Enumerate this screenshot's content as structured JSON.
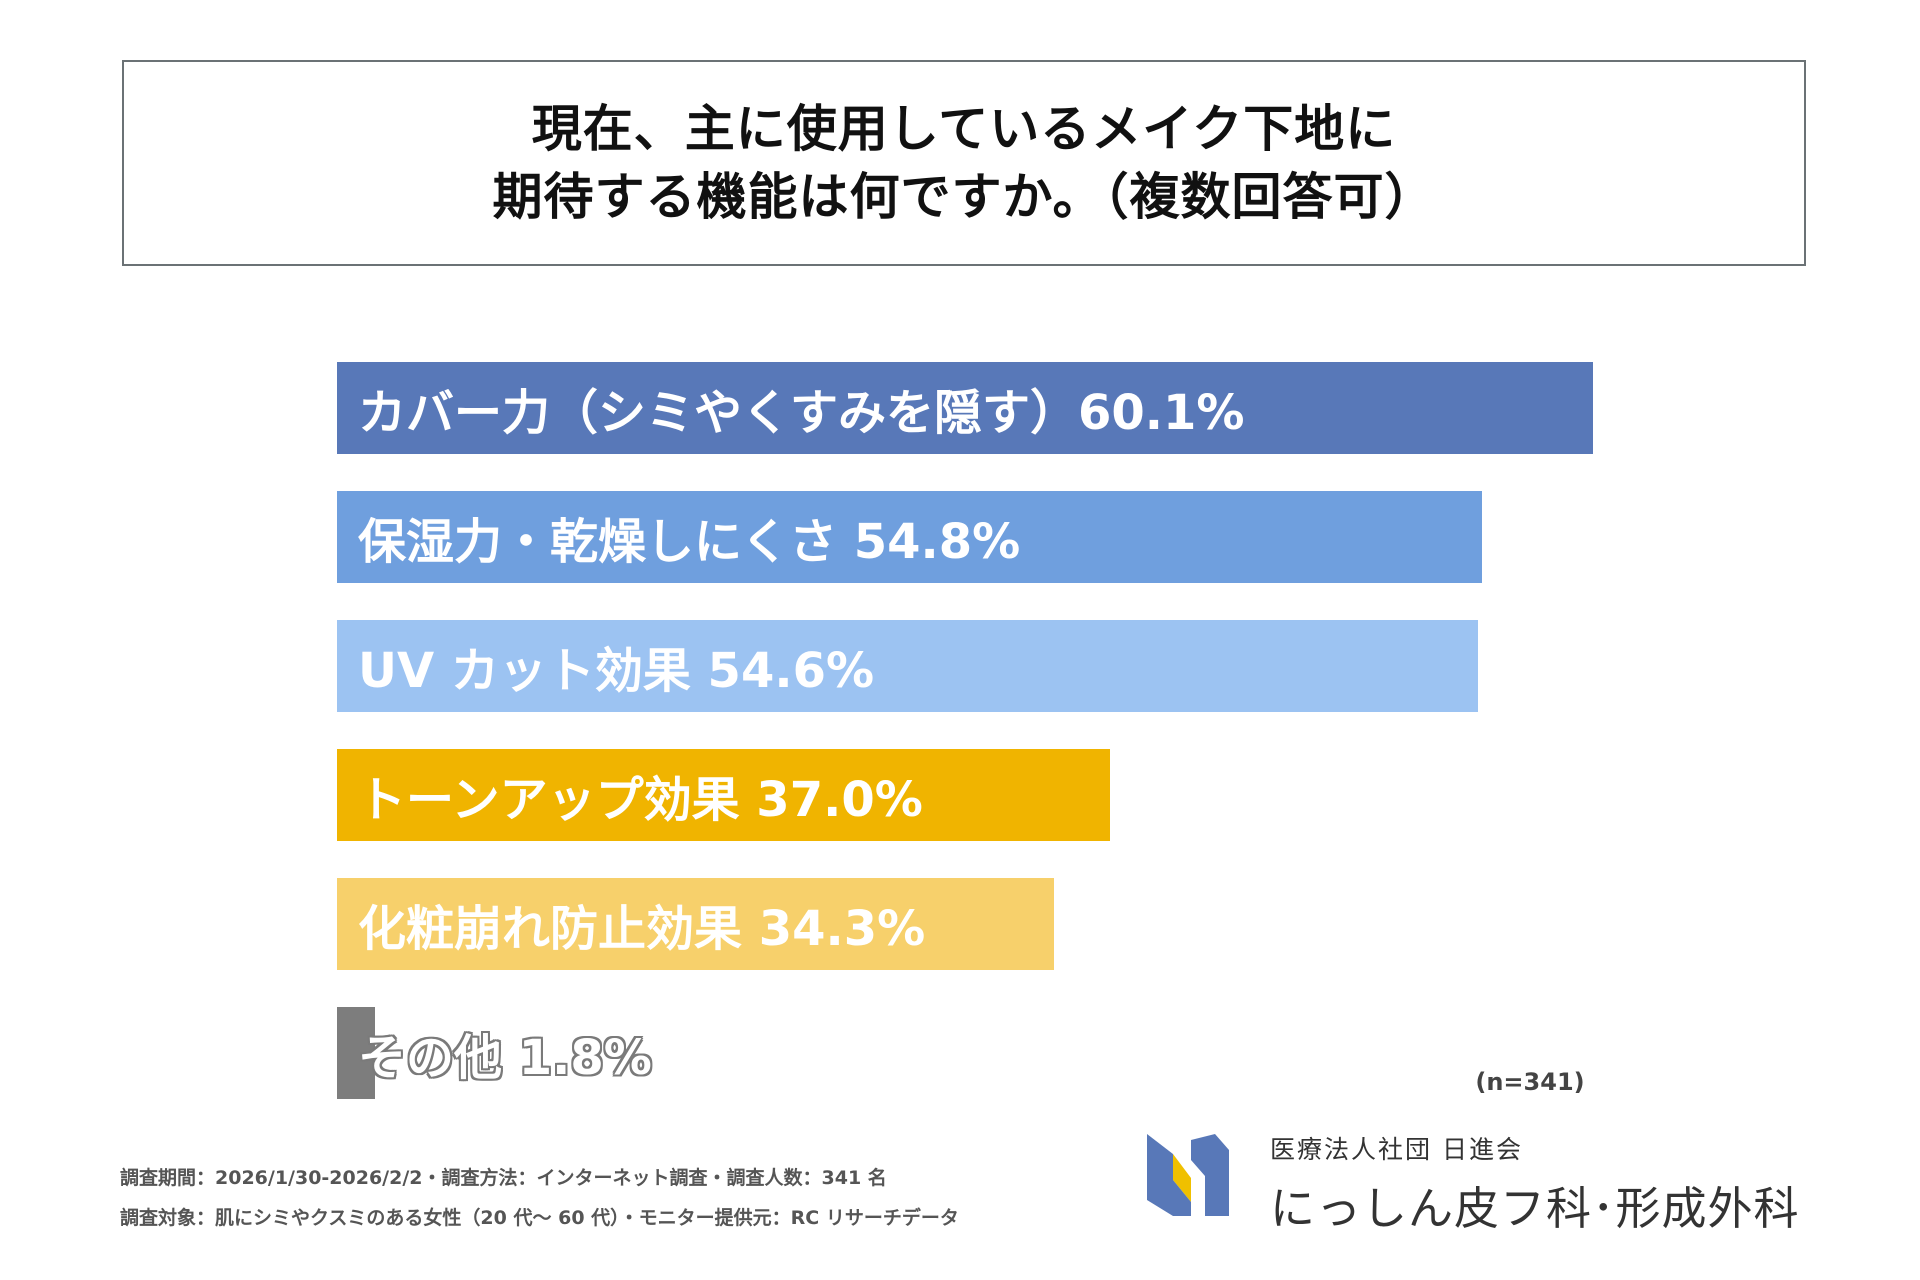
{
  "title": {
    "line1": "現在、主に使用しているメイク下地に",
    "line2": "期待する機能は何ですか。（複数回答可）"
  },
  "chart_data": {
    "type": "bar",
    "orientation": "horizontal",
    "title": "現在、主に使用しているメイク下地に期待する機能は何ですか。（複数回答可）",
    "categories": [
      "カバー力（シミやくすみを隠す）",
      "保湿力・乾燥しにくさ",
      "UV カット効果",
      "トーンアップ効果",
      "化粧崩れ防止効果",
      "その他"
    ],
    "values": [
      60.1,
      54.8,
      54.6,
      37.0,
      34.3,
      1.8
    ],
    "labels": [
      "カバー力（シミやくすみを隠す）60.1%",
      "保湿力・乾燥しにくさ  54.8%",
      "UV カット効果  54.6%",
      "トーンアップ効果  37.0%",
      "化粧崩れ防止効果  34.3%",
      "その他  1.8%"
    ],
    "colors": [
      "#5878b8",
      "#6f9fde",
      "#9cc3f2",
      "#f0b400",
      "#f7d06b",
      "#7d7d7d"
    ],
    "unit": "%",
    "xlim": [
      0,
      60.1
    ]
  },
  "sample_note": "(n=341)",
  "footnotes": {
    "line1": "調査期間：2026/1/30-2026/2/2・調査方法：インターネット調査・調査人数：341 名",
    "line2": "調査対象：肌にシミやクスミのある女性（20 代～ 60 代）・モニター提供元：RC リサーチデータ"
  },
  "organization": {
    "corporation": "医療法人社団 日進会",
    "clinic": "にっしん皮フ科･形成外科"
  },
  "logo": {
    "icon": "clinic-logo-icon",
    "colors": [
      "#5878b8",
      "#f0c000"
    ]
  }
}
